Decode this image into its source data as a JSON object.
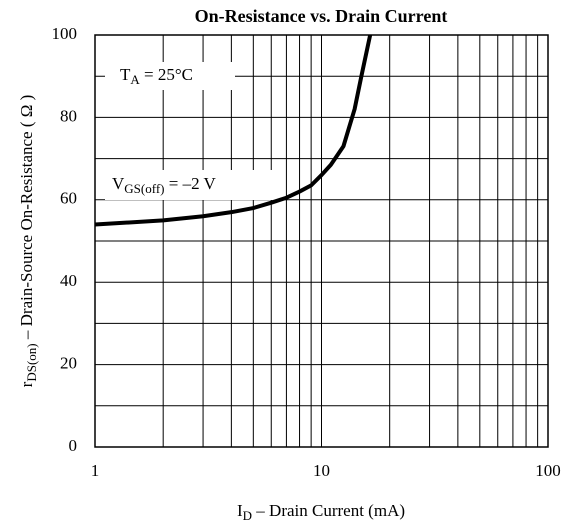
{
  "chart_data": {
    "type": "line",
    "title": "On-Resistance vs. Drain Current",
    "xlabel": [
      "I",
      "D",
      " – Drain Current (mA)"
    ],
    "ylabel": [
      "r",
      "DS(on)",
      " – Drain-Source On-Resistance ( Ω )"
    ],
    "annotations": [
      [
        "T",
        "A",
        " = 25°C"
      ],
      [
        "V",
        "GS(off)",
        " = –2 V"
      ]
    ],
    "xscale": "log",
    "xlim": [
      1,
      100
    ],
    "xticks": [
      1,
      10,
      100
    ],
    "xminor": [
      2,
      3,
      4,
      5,
      6,
      7,
      8,
      9,
      20,
      30,
      40,
      50,
      60,
      70,
      80,
      90
    ],
    "ylim": [
      0,
      100
    ],
    "yticks": [
      0,
      20,
      40,
      60,
      80,
      100
    ],
    "yminor": [
      10,
      30,
      50,
      70,
      90
    ],
    "grid": true,
    "series": [
      {
        "color": "#000000",
        "x": [
          1,
          2,
          3,
          4,
          5,
          6,
          7,
          8,
          9,
          10,
          11,
          12.5,
          14,
          15,
          16.4
        ],
        "values": [
          54,
          55,
          56,
          57,
          58,
          59.3,
          60.5,
          62,
          63.5,
          66,
          68.5,
          73,
          82,
          90,
          100
        ]
      }
    ]
  }
}
